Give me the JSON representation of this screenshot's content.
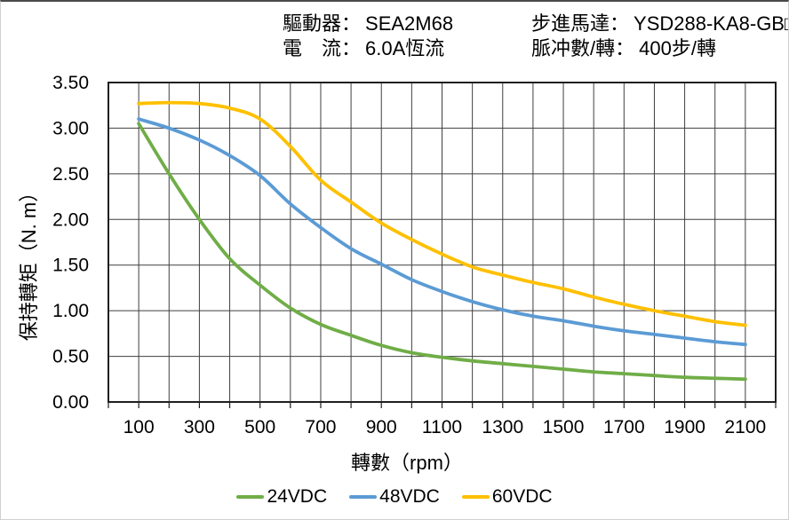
{
  "header": {
    "col1": [
      {
        "label": "驅動器：",
        "value": "SEA2M68"
      },
      {
        "label": "電　流：",
        "value": "6.0A恆流"
      }
    ],
    "col2": [
      {
        "label": "步進馬達：",
        "value": "YSD288-KA8-GB□"
      },
      {
        "label": "脈冲數/轉：",
        "value": "400步/轉"
      }
    ]
  },
  "chart_data": {
    "type": "line",
    "title": "",
    "xlabel": "轉數（rpm）",
    "ylabel": "保持轉矩（N. m）",
    "xlim": [
      0,
      2200
    ],
    "ylim": [
      0,
      3.5
    ],
    "x_grid_step": 100,
    "y_grid_step": 0.5,
    "grid": true,
    "legend_position": "bottom",
    "x": [
      100,
      200,
      300,
      400,
      500,
      600,
      700,
      800,
      900,
      1000,
      1100,
      1200,
      1300,
      1400,
      1500,
      1600,
      1700,
      1800,
      1900,
      2000,
      2100
    ],
    "x_tick_labels": [
      100,
      300,
      500,
      700,
      900,
      1100,
      1300,
      1500,
      1700,
      1900,
      2100
    ],
    "y_ticks": [
      {
        "value": 0.0,
        "label": "0.00"
      },
      {
        "value": 0.5,
        "label": "0.50"
      },
      {
        "value": 1.0,
        "label": "1.00"
      },
      {
        "value": 1.5,
        "label": "1.50"
      },
      {
        "value": 2.0,
        "label": "2.00"
      },
      {
        "value": 2.5,
        "label": "2.50"
      },
      {
        "value": 3.0,
        "label": "3.00"
      },
      {
        "value": 3.5,
        "label": "3.50"
      }
    ],
    "series": [
      {
        "name": "24VDC",
        "color": "#70AD47",
        "values": [
          3.05,
          2.5,
          2.0,
          1.57,
          1.28,
          1.03,
          0.85,
          0.73,
          0.62,
          0.54,
          0.49,
          0.45,
          0.42,
          0.39,
          0.36,
          0.33,
          0.31,
          0.29,
          0.27,
          0.26,
          0.25
        ]
      },
      {
        "name": "48VDC",
        "color": "#5B9BD5",
        "values": [
          3.1,
          3.0,
          2.87,
          2.7,
          2.48,
          2.17,
          1.91,
          1.68,
          1.51,
          1.34,
          1.21,
          1.1,
          1.01,
          0.94,
          0.89,
          0.83,
          0.78,
          0.74,
          0.7,
          0.66,
          0.63
        ]
      },
      {
        "name": "60VDC",
        "color": "#FFC000",
        "values": [
          3.27,
          3.28,
          3.27,
          3.22,
          3.1,
          2.8,
          2.43,
          2.19,
          1.96,
          1.78,
          1.62,
          1.48,
          1.39,
          1.31,
          1.24,
          1.15,
          1.07,
          1.0,
          0.94,
          0.88,
          0.84
        ]
      }
    ],
    "colors": {
      "grid": "#3f3f3f",
      "axis": "#1f1f1f",
      "text": "#000000"
    }
  }
}
